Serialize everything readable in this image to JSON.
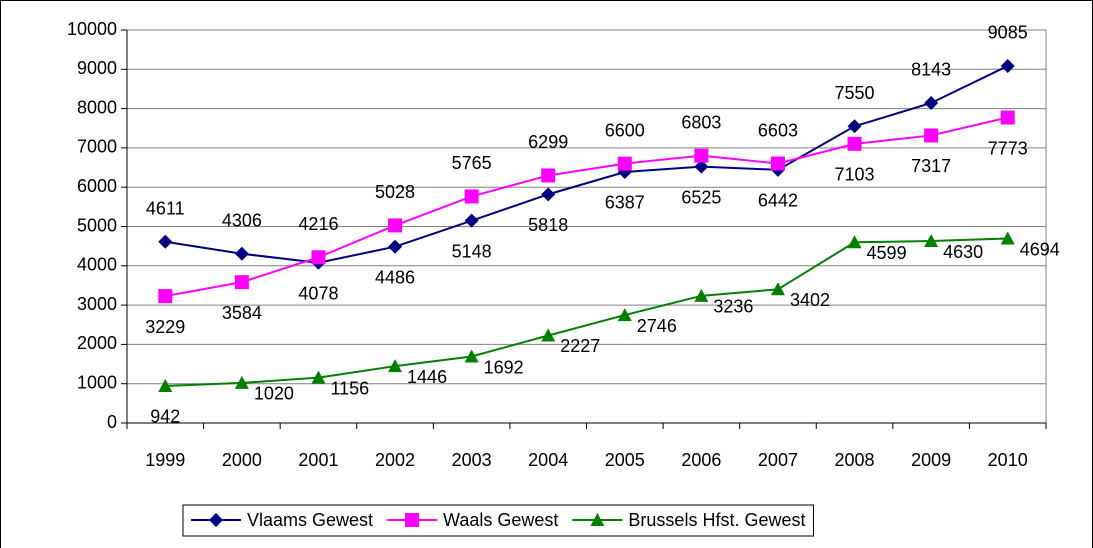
{
  "chart_data": {
    "type": "line",
    "categories": [
      "1999",
      "2000",
      "2001",
      "2002",
      "2003",
      "2004",
      "2005",
      "2006",
      "2007",
      "2008",
      "2009",
      "2010"
    ],
    "series": [
      {
        "name": "Vlaams Gewest",
        "color": "#000080",
        "marker": "diamond",
        "values": [
          4611,
          4306,
          4078,
          4486,
          5148,
          5818,
          6387,
          6525,
          6442,
          7550,
          8143,
          9085
        ]
      },
      {
        "name": "Waals Gewest",
        "color": "#ff00ff",
        "marker": "square",
        "values": [
          3229,
          3584,
          4216,
          5028,
          5765,
          6299,
          6600,
          6803,
          6603,
          7103,
          7317,
          7773
        ]
      },
      {
        "name": "Brussels Hfst. Gewest",
        "color": "#008000",
        "marker": "triangle",
        "values": [
          942,
          1020,
          1156,
          1446,
          1692,
          2227,
          2746,
          3236,
          3402,
          4599,
          4630,
          4694
        ]
      }
    ],
    "ylim": [
      0,
      10000
    ],
    "yticks": [
      0,
      1000,
      2000,
      3000,
      4000,
      5000,
      6000,
      7000,
      8000,
      9000,
      10000
    ],
    "grid": true,
    "legend": "bottom"
  }
}
